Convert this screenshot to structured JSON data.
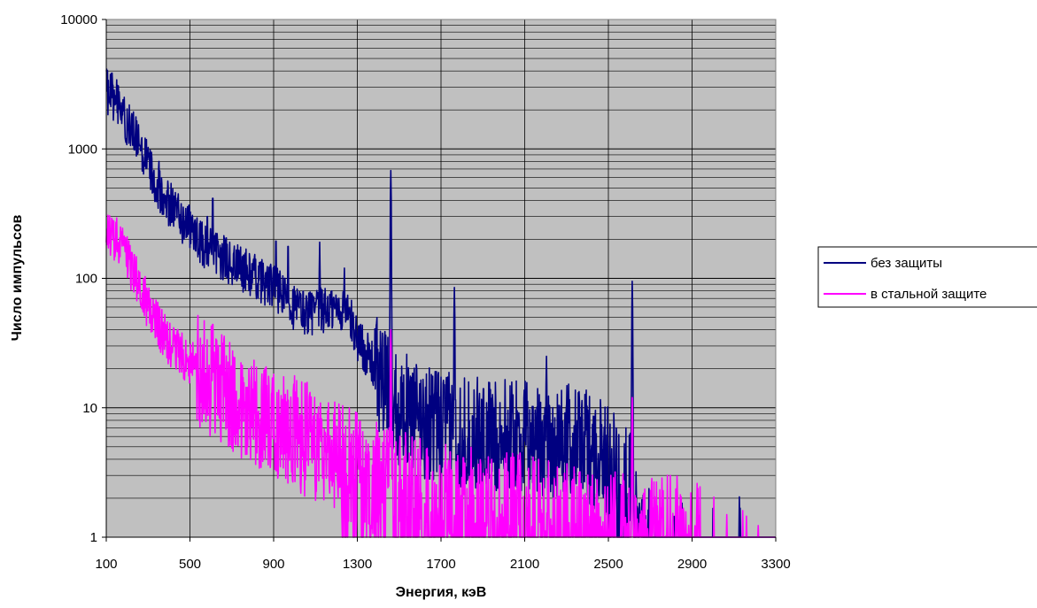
{
  "chart_data": {
    "type": "line",
    "title": "",
    "xlabel": "Энергия, кэВ",
    "ylabel": "Число импульсов",
    "x_scale": "linear",
    "y_scale": "log",
    "xlim": [
      100,
      3300
    ],
    "ylim": [
      1,
      10000
    ],
    "x_ticks": [
      "100",
      "500",
      "900",
      "1300",
      "1700",
      "2100",
      "2500",
      "2900",
      "3300"
    ],
    "y_ticks": [
      "1",
      "10",
      "100",
      "1000",
      "10000"
    ],
    "grid": "on",
    "plot_background": "#c0c0c0",
    "legend_position": "right",
    "series": [
      {
        "name": "без защиты",
        "color": "#000080",
        "points": [
          [
            100,
            2800
          ],
          [
            120,
            2700
          ],
          [
            150,
            2300
          ],
          [
            200,
            1600
          ],
          [
            250,
            1100
          ],
          [
            300,
            750
          ],
          [
            350,
            500
          ],
          [
            400,
            380
          ],
          [
            450,
            300
          ],
          [
            500,
            240
          ],
          [
            550,
            190
          ],
          [
            600,
            160
          ],
          [
            650,
            145
          ],
          [
            700,
            130
          ],
          [
            750,
            118
          ],
          [
            800,
            105
          ],
          [
            850,
            95
          ],
          [
            900,
            85
          ],
          [
            950,
            70
          ],
          [
            1000,
            60
          ],
          [
            1050,
            55
          ],
          [
            1100,
            55
          ],
          [
            1150,
            57
          ],
          [
            1200,
            58
          ],
          [
            1250,
            55
          ],
          [
            1300,
            35
          ],
          [
            1350,
            25
          ],
          [
            1400,
            18
          ],
          [
            1450,
            13
          ],
          [
            1500,
            10
          ],
          [
            1550,
            9
          ],
          [
            1600,
            8
          ],
          [
            1700,
            7
          ],
          [
            1800,
            6.5
          ],
          [
            1900,
            6
          ],
          [
            2000,
            6
          ],
          [
            2100,
            5.8
          ],
          [
            2200,
            5.5
          ],
          [
            2300,
            5.5
          ],
          [
            2400,
            5
          ],
          [
            2500,
            4
          ],
          [
            2550,
            3
          ],
          [
            2600,
            2.5
          ],
          [
            2700,
            1
          ],
          [
            2900,
            1
          ],
          [
            3000,
            1
          ],
          [
            3300,
            1
          ]
        ],
        "peaks": [
          [
            240,
            1400
          ],
          [
            352,
            800
          ],
          [
            609,
            470
          ],
          [
            583,
            340
          ],
          [
            911,
            220
          ],
          [
            969,
            200
          ],
          [
            1120,
            190
          ],
          [
            1238,
            120
          ],
          [
            1460,
            680
          ],
          [
            1764,
            85
          ],
          [
            2204,
            25
          ],
          [
            2614,
            95
          ]
        ]
      },
      {
        "name": "в стальной защите",
        "color": "#ff00ff",
        "points": [
          [
            100,
            240
          ],
          [
            150,
            200
          ],
          [
            200,
            140
          ],
          [
            250,
            95
          ],
          [
            300,
            60
          ],
          [
            350,
            42
          ],
          [
            400,
            32
          ],
          [
            450,
            26
          ],
          [
            500,
            22
          ],
          [
            550,
            19
          ],
          [
            600,
            16
          ],
          [
            650,
            14
          ],
          [
            700,
            12
          ],
          [
            750,
            10.5
          ],
          [
            800,
            9.5
          ],
          [
            850,
            8.5
          ],
          [
            900,
            7.5
          ],
          [
            950,
            7
          ],
          [
            1000,
            6.3
          ],
          [
            1050,
            5.8
          ],
          [
            1100,
            5.3
          ],
          [
            1150,
            4.8
          ],
          [
            1200,
            4.2
          ],
          [
            1250,
            3.7
          ],
          [
            1300,
            3.3
          ],
          [
            1350,
            3
          ],
          [
            1400,
            2.8
          ],
          [
            1450,
            2.6
          ],
          [
            1500,
            2.4
          ],
          [
            1600,
            2.2
          ],
          [
            1700,
            2
          ],
          [
            1800,
            1.8
          ],
          [
            1900,
            1.8
          ],
          [
            2000,
            1.6
          ],
          [
            2100,
            1.6
          ],
          [
            2200,
            1.5
          ],
          [
            2300,
            1.4
          ],
          [
            2400,
            1.3
          ],
          [
            2500,
            1.2
          ],
          [
            2600,
            1.1
          ],
          [
            3300,
            1
          ]
        ],
        "peaks": [
          [
            609,
            50
          ],
          [
            1460,
            40
          ],
          [
            2614,
            12
          ]
        ]
      }
    ]
  }
}
